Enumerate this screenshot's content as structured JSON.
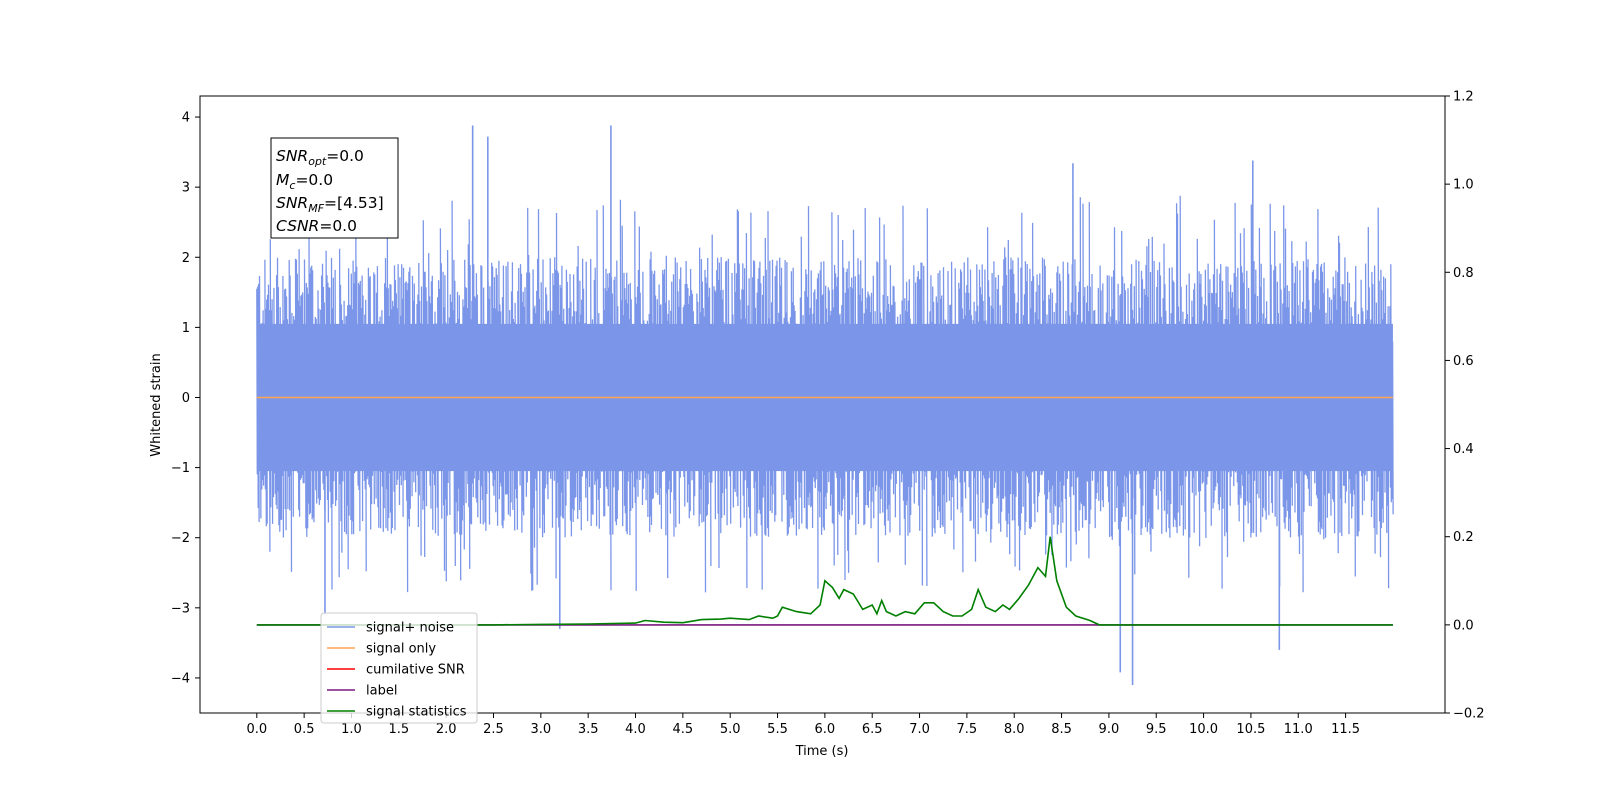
{
  "chart_data": {
    "type": "line",
    "xlabel": "Time (s)",
    "ylabel": "Whitened strain",
    "xlim": [
      -0.6,
      12.55
    ],
    "ylim": [
      -4.5,
      4.3
    ],
    "y2lim": [
      -0.2,
      1.2
    ],
    "x_ticks": [
      "0.0",
      "0.5",
      "1.0",
      "1.5",
      "2.0",
      "2.5",
      "3.0",
      "3.5",
      "4.0",
      "4.5",
      "5.0",
      "5.5",
      "6.0",
      "6.5",
      "7.0",
      "7.5",
      "8.0",
      "8.5",
      "9.0",
      "9.5",
      "10.0",
      "10.5",
      "11.0",
      "11.5"
    ],
    "y_ticks": [
      4,
      3,
      2,
      1,
      0,
      -1,
      -2,
      -3,
      -4
    ],
    "y2_ticks": [
      "1.2",
      "1.0",
      "0.8",
      "0.6",
      "0.4",
      "0.2",
      "0.0",
      "−0.2"
    ],
    "noise_band": {
      "x_start": 0.0,
      "x_end": 12.0,
      "typical_min": -2.0,
      "typical_max": 2.0,
      "spikes": [
        [
          2.28,
          3.88
        ],
        [
          2.44,
          3.72
        ],
        [
          3.74,
          3.88
        ],
        [
          10.52,
          3.38
        ],
        [
          8.62,
          3.34
        ],
        [
          9.12,
          -3.92
        ],
        [
          9.25,
          -4.1
        ],
        [
          10.8,
          -3.6
        ],
        [
          0.72,
          -3.1
        ],
        [
          3.2,
          -3.3
        ]
      ]
    },
    "series": [
      {
        "name": "signal+ noise",
        "color": "#7b96e8",
        "axis": "left",
        "note": "dense noise trace"
      },
      {
        "name": "signal only",
        "color": "#ffa54f",
        "axis": "left",
        "values": [
          [
            0.0,
            0.0
          ],
          [
            12.0,
            0.0
          ]
        ]
      },
      {
        "name": "cumilative SNR",
        "color": "#ff0000",
        "axis": "right",
        "values": []
      },
      {
        "name": "label",
        "color": "#7a1a80",
        "axis": "right",
        "values": [
          [
            0.0,
            0.0
          ],
          [
            12.0,
            0.0
          ]
        ]
      },
      {
        "name": "signal statistics",
        "color": "#008000",
        "axis": "right",
        "values": [
          [
            0.0,
            0.0
          ],
          [
            2.5,
            0.0
          ],
          [
            3.0,
            0.001
          ],
          [
            3.5,
            0.002
          ],
          [
            4.0,
            0.004
          ],
          [
            4.1,
            0.01
          ],
          [
            4.3,
            0.006
          ],
          [
            4.5,
            0.005
          ],
          [
            4.7,
            0.012
          ],
          [
            4.9,
            0.013
          ],
          [
            5.0,
            0.015
          ],
          [
            5.2,
            0.012
          ],
          [
            5.3,
            0.02
          ],
          [
            5.45,
            0.015
          ],
          [
            5.5,
            0.02
          ],
          [
            5.55,
            0.04
          ],
          [
            5.7,
            0.03
          ],
          [
            5.85,
            0.025
          ],
          [
            5.95,
            0.045
          ],
          [
            6.0,
            0.1
          ],
          [
            6.08,
            0.085
          ],
          [
            6.15,
            0.06
          ],
          [
            6.2,
            0.08
          ],
          [
            6.3,
            0.07
          ],
          [
            6.4,
            0.035
          ],
          [
            6.5,
            0.045
          ],
          [
            6.55,
            0.025
          ],
          [
            6.6,
            0.055
          ],
          [
            6.65,
            0.03
          ],
          [
            6.75,
            0.02
          ],
          [
            6.85,
            0.03
          ],
          [
            6.95,
            0.025
          ],
          [
            7.05,
            0.05
          ],
          [
            7.15,
            0.05
          ],
          [
            7.25,
            0.03
          ],
          [
            7.35,
            0.02
          ],
          [
            7.45,
            0.02
          ],
          [
            7.55,
            0.035
          ],
          [
            7.62,
            0.08
          ],
          [
            7.7,
            0.04
          ],
          [
            7.8,
            0.03
          ],
          [
            7.88,
            0.045
          ],
          [
            7.95,
            0.035
          ],
          [
            8.05,
            0.06
          ],
          [
            8.15,
            0.09
          ],
          [
            8.25,
            0.13
          ],
          [
            8.33,
            0.11
          ],
          [
            8.38,
            0.2
          ],
          [
            8.45,
            0.1
          ],
          [
            8.55,
            0.04
          ],
          [
            8.65,
            0.02
          ],
          [
            8.8,
            0.01
          ],
          [
            8.9,
            0.0
          ],
          [
            9.5,
            0.0
          ],
          [
            10.0,
            0.0
          ],
          [
            12.0,
            0.0
          ]
        ]
      }
    ],
    "legend": {
      "placement": "lower-left",
      "entries": [
        {
          "label": "signal+ noise",
          "color": "#7b96e8"
        },
        {
          "label": "signal only",
          "color": "#ffa54f"
        },
        {
          "label": "cumilative SNR",
          "color": "#ff0000"
        },
        {
          "label": "label",
          "color": "#7a1a80"
        },
        {
          "label": "signal statistics",
          "color": "#008000"
        }
      ]
    },
    "stats_box": {
      "snr_opt_main": "SNR",
      "snr_opt_sub": "opt",
      "snr_opt_val": "=0.0",
      "mc_main": "M",
      "mc_sub": "c",
      "mc_val": "=0.0",
      "snr_mf_main": "SNR",
      "snr_mf_sub": "MF",
      "snr_mf_val": "=[4.53]",
      "csnr_main": "CSNR",
      "csnr_val": "=0.0"
    },
    "grid": false
  }
}
